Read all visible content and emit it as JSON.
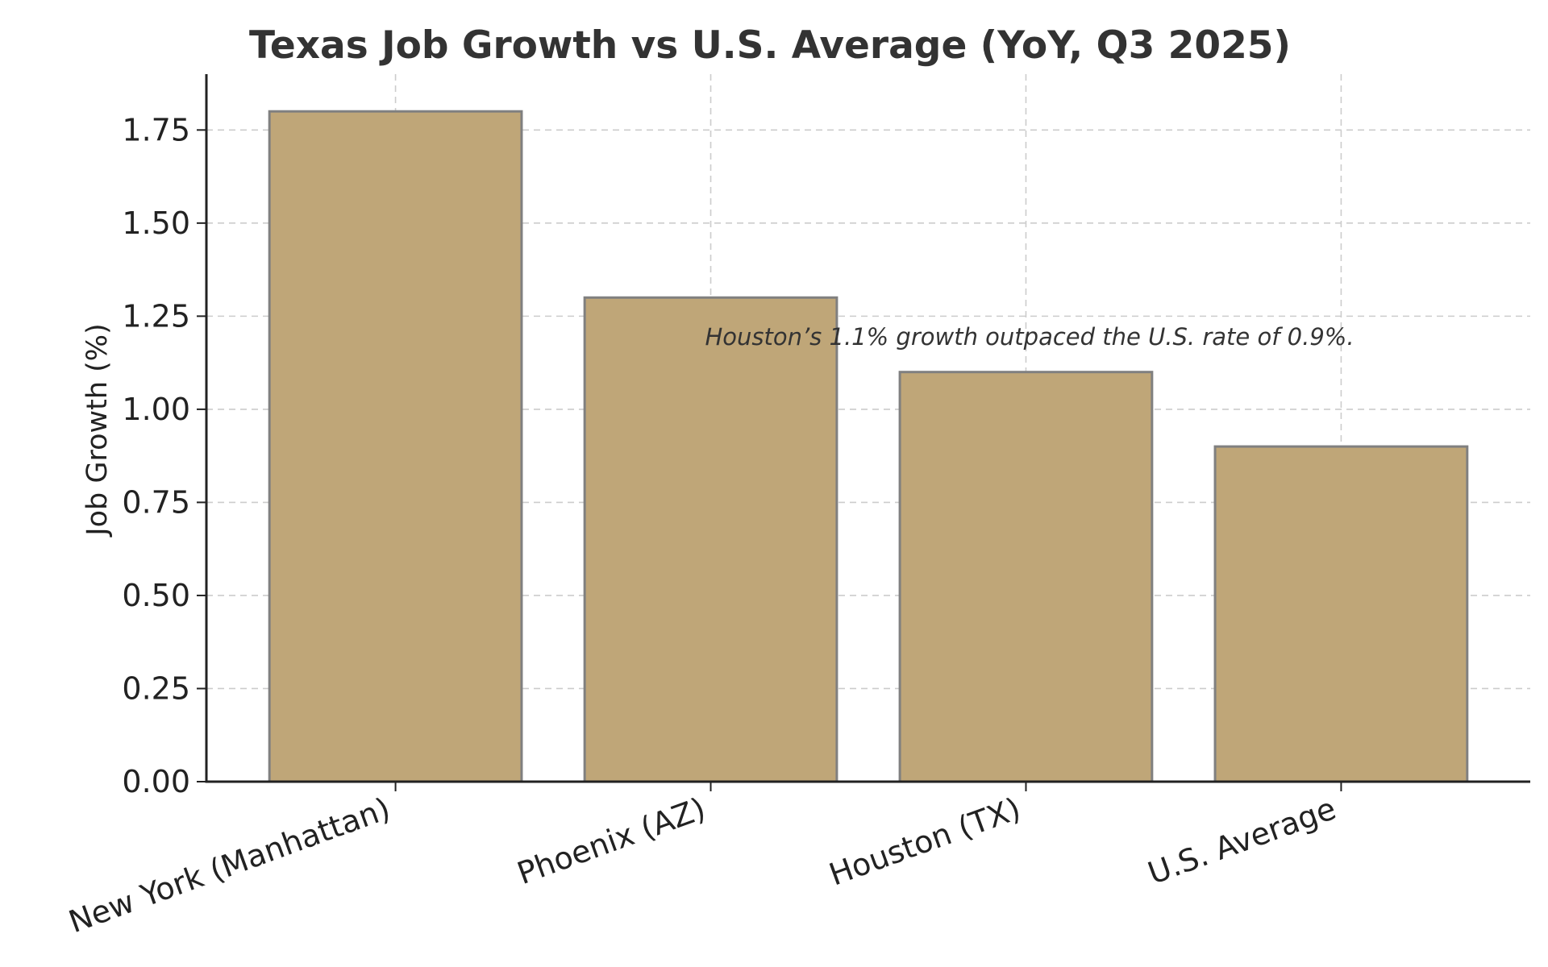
{
  "chart_data": {
    "type": "bar",
    "title": "Texas Job Growth vs U.S. Average (YoY, Q3 2025)",
    "xlabel": "",
    "ylabel": "Job Growth (%)",
    "categories": [
      "New York (Manhattan)",
      "Phoenix (AZ)",
      "Houston (TX)",
      "U.S. Average"
    ],
    "values": [
      1.8,
      1.3,
      1.1,
      0.9
    ],
    "ylim": [
      0,
      1.9
    ],
    "yticks": [
      0.0,
      0.25,
      0.5,
      0.75,
      1.0,
      1.25,
      1.5,
      1.75
    ],
    "ytick_labels": [
      "0.00",
      "0.25",
      "0.50",
      "0.75",
      "1.00",
      "1.25",
      "1.50",
      "1.75"
    ],
    "grid": true,
    "annotation": "Houston’s 1.1% growth outpaced the U.S. rate of 0.9%.",
    "bar_color": "#bfa678",
    "bar_edge_color": "#808080"
  }
}
